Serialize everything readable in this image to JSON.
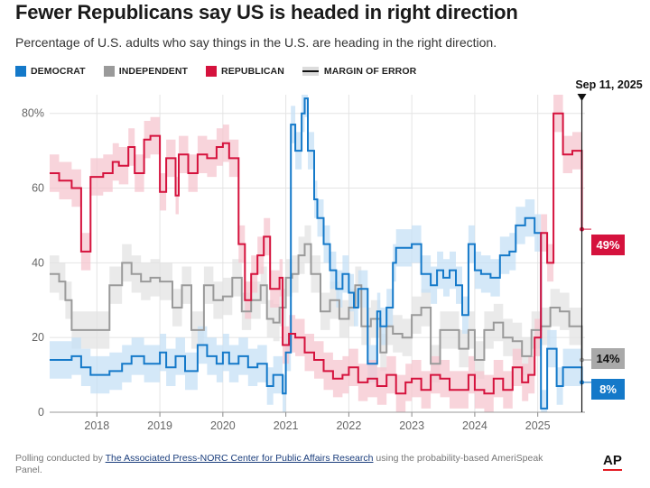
{
  "header": {
    "title": "Fewer Republicans say US is headed in right direction",
    "subtitle": "Percentage of U.S. adults who say things in the U.S. are heading in the right direction."
  },
  "legend": {
    "democrat": "DEMOCRAT",
    "independent": "INDEPENDENT",
    "republican": "REPUBLICAN",
    "moe": "MARGIN OF ERROR"
  },
  "colors": {
    "democrat": "#1479c9",
    "democrat_band": "#c6e0f5",
    "independent": "#9a9a9a",
    "independent_band": "#e3e3e3",
    "republican": "#d5123d",
    "republican_band": "#f5c5cf"
  },
  "chart_data": {
    "type": "line",
    "x_ticks": [
      "2018",
      "2019",
      "2020",
      "2021",
      "2022",
      "2023",
      "2024",
      "2025"
    ],
    "y_ticks": [
      "0",
      "20",
      "40",
      "60",
      "80%"
    ],
    "ylim": [
      0,
      85
    ],
    "xlim": [
      2017.25,
      2025.75
    ],
    "grid": true,
    "step": true,
    "annotation": {
      "date_label": "Sep 11, 2025",
      "x": 2025.7
    },
    "end_labels": {
      "republican": "49%",
      "independent": "14%",
      "democrat": "8%"
    },
    "series": [
      {
        "name": "DEMOCRAT",
        "key": "democrat",
        "x": [
          2017.25,
          2017.6,
          2017.75,
          2017.9,
          2018.2,
          2018.4,
          2018.55,
          2018.75,
          2018.9,
          2019.0,
          2019.1,
          2019.25,
          2019.4,
          2019.6,
          2019.75,
          2019.9,
          2020.0,
          2020.1,
          2020.25,
          2020.4,
          2020.55,
          2020.7,
          2020.8,
          2020.95,
          2021.0,
          2021.08,
          2021.15,
          2021.25,
          2021.3,
          2021.35,
          2021.45,
          2021.5,
          2021.6,
          2021.7,
          2021.8,
          2021.9,
          2022.0,
          2022.08,
          2022.15,
          2022.3,
          2022.45,
          2022.5,
          2022.6,
          2022.7,
          2022.75,
          2022.85,
          2023.0,
          2023.15,
          2023.3,
          2023.4,
          2023.5,
          2023.6,
          2023.7,
          2023.8,
          2023.9,
          2024.0,
          2024.1,
          2024.25,
          2024.4,
          2024.55,
          2024.65,
          2024.8,
          2024.95,
          2025.05,
          2025.15,
          2025.3,
          2025.4,
          2025.55,
          2025.7
        ],
        "y": [
          14,
          15,
          12,
          10,
          11,
          13,
          15,
          13,
          13,
          16,
          12,
          15,
          11,
          18,
          15,
          13,
          16,
          13,
          15,
          12,
          13,
          7,
          10,
          5,
          16,
          77,
          70,
          80,
          84,
          70,
          57,
          52,
          45,
          38,
          33,
          37,
          32,
          28,
          33,
          13,
          27,
          23,
          28,
          40,
          44,
          44,
          45,
          37,
          34,
          38,
          36,
          38,
          34,
          26,
          45,
          38,
          37,
          36,
          42,
          43,
          50,
          52,
          48,
          1,
          17,
          7,
          12,
          12,
          8
        ]
      },
      {
        "name": "INDEPENDENT",
        "key": "independent",
        "x": [
          2017.25,
          2017.4,
          2017.5,
          2017.6,
          2017.8,
          2018.0,
          2018.2,
          2018.4,
          2018.55,
          2018.7,
          2018.85,
          2019.0,
          2019.2,
          2019.35,
          2019.5,
          2019.7,
          2019.85,
          2020.0,
          2020.15,
          2020.3,
          2020.45,
          2020.6,
          2020.7,
          2020.8,
          2020.9,
          2021.0,
          2021.1,
          2021.2,
          2021.3,
          2021.4,
          2021.55,
          2021.7,
          2021.85,
          2022.0,
          2022.1,
          2022.2,
          2022.35,
          2022.5,
          2022.6,
          2022.7,
          2022.85,
          2023.0,
          2023.15,
          2023.3,
          2023.45,
          2023.6,
          2023.75,
          2023.9,
          2024.0,
          2024.15,
          2024.3,
          2024.45,
          2024.6,
          2024.75,
          2024.9,
          2025.05,
          2025.2,
          2025.35,
          2025.5,
          2025.7
        ],
        "y": [
          37,
          35,
          30,
          22,
          22,
          22,
          34,
          40,
          37,
          35,
          36,
          35,
          28,
          34,
          22,
          34,
          30,
          31,
          36,
          27,
          30,
          34,
          25,
          24,
          28,
          36,
          37,
          42,
          45,
          37,
          27,
          30,
          25,
          28,
          34,
          23,
          25,
          16,
          23,
          21,
          20,
          26,
          28,
          13,
          22,
          22,
          17,
          22,
          14,
          22,
          24,
          20,
          19,
          15,
          22,
          23,
          28,
          27,
          23,
          14
        ]
      },
      {
        "name": "REPUBLICAN",
        "key": "republican",
        "x": [
          2017.25,
          2017.4,
          2017.6,
          2017.75,
          2017.9,
          2018.1,
          2018.25,
          2018.35,
          2018.5,
          2018.6,
          2018.75,
          2018.85,
          2019.0,
          2019.1,
          2019.25,
          2019.3,
          2019.45,
          2019.6,
          2019.75,
          2019.9,
          2020.0,
          2020.1,
          2020.25,
          2020.35,
          2020.45,
          2020.55,
          2020.65,
          2020.75,
          2020.9,
          2020.95,
          2021.05,
          2021.15,
          2021.3,
          2021.45,
          2021.6,
          2021.75,
          2021.9,
          2022.0,
          2022.15,
          2022.3,
          2022.45,
          2022.6,
          2022.75,
          2022.9,
          2023.0,
          2023.15,
          2023.3,
          2023.45,
          2023.6,
          2023.75,
          2023.9,
          2024.0,
          2024.15,
          2024.3,
          2024.45,
          2024.6,
          2024.75,
          2024.85,
          2024.95,
          2025.05,
          2025.15,
          2025.25,
          2025.4,
          2025.55,
          2025.7
        ],
        "y": [
          64,
          62,
          60,
          43,
          63,
          64,
          67,
          66,
          71,
          64,
          73,
          74,
          59,
          68,
          58,
          69,
          64,
          69,
          68,
          71,
          72,
          68,
          45,
          30,
          37,
          42,
          47,
          33,
          36,
          18,
          21,
          20,
          16,
          14,
          11,
          9,
          10,
          12,
          8,
          9,
          7,
          10,
          5,
          8,
          9,
          6,
          10,
          9,
          6,
          6,
          10,
          6,
          5,
          9,
          6,
          12,
          8,
          10,
          20,
          48,
          40,
          80,
          69,
          70,
          49
        ]
      }
    ]
  },
  "footer": {
    "prefix": "Polling conducted by ",
    "link": "The Associated Press-NORC Center for Public Affairs Research",
    "suffix": " using the probability-based AmeriSpeak Panel."
  },
  "brand": {
    "logo": "AP"
  }
}
